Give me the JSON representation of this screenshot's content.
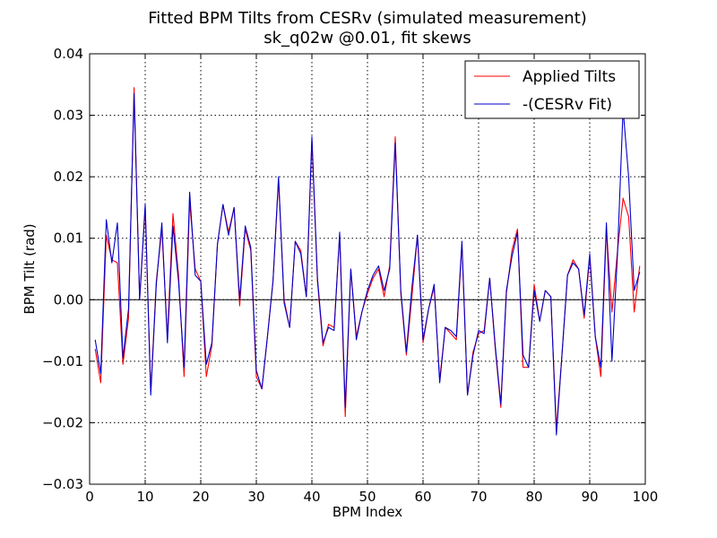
{
  "chart_data": {
    "type": "line",
    "title": "Fitted BPM Tilts from CESRv (simulated measurement)",
    "subtitle": "sk_q02w @0.01, fit skews",
    "xlabel": "BPM Index",
    "ylabel": "BPM Tilt (rad)",
    "xlim": [
      0,
      100
    ],
    "ylim": [
      -0.03,
      0.04
    ],
    "xticks": [
      0,
      10,
      20,
      30,
      40,
      50,
      60,
      70,
      80,
      90,
      100
    ],
    "yticks": [
      -0.03,
      -0.02,
      -0.01,
      0.0,
      0.01,
      0.02,
      0.03,
      0.04
    ],
    "xtick_labels": [
      "0",
      "10",
      "20",
      "30",
      "40",
      "50",
      "60",
      "70",
      "80",
      "90",
      "100"
    ],
    "ytick_labels": [
      "−0.03",
      "−0.02",
      "−0.01",
      "0.00",
      "0.01",
      "0.02",
      "0.03",
      "0.04"
    ],
    "grid": true,
    "zero_line": true,
    "legend_position": "top-right",
    "series": [
      {
        "name": "Applied Tilts",
        "color": "#ff0000",
        "x": [
          1,
          2,
          3,
          4,
          5,
          6,
          7,
          8,
          9,
          10,
          11,
          12,
          13,
          14,
          15,
          16,
          17,
          18,
          19,
          20,
          21,
          22,
          23,
          24,
          25,
          26,
          27,
          28,
          29,
          30,
          31,
          32,
          33,
          34,
          35,
          36,
          37,
          38,
          39,
          40,
          41,
          42,
          43,
          44,
          45,
          46,
          47,
          48,
          49,
          50,
          51,
          52,
          53,
          54,
          55,
          56,
          57,
          58,
          59,
          60,
          61,
          62,
          63,
          64,
          65,
          66,
          67,
          68,
          69,
          70,
          71,
          72,
          73,
          74,
          75,
          76,
          77,
          78,
          79,
          80,
          81,
          82,
          83,
          84,
          85,
          86,
          87,
          88,
          89,
          90,
          91,
          92,
          93,
          94,
          95,
          96,
          97,
          98,
          99
        ],
        "y": [
          -0.008,
          -0.0135,
          0.0105,
          0.0065,
          0.006,
          -0.0105,
          -0.003,
          0.0345,
          0.0,
          0.015,
          -0.015,
          0.003,
          0.0115,
          -0.006,
          0.014,
          0.004,
          -0.0125,
          0.016,
          0.005,
          0.003,
          -0.0125,
          -0.0075,
          0.009,
          0.0155,
          0.011,
          0.015,
          -0.001,
          0.0115,
          0.008,
          -0.0125,
          -0.0145,
          -0.006,
          0.003,
          0.0195,
          0.0,
          -0.0045,
          0.0095,
          0.008,
          0.0005,
          0.026,
          0.003,
          -0.0075,
          -0.004,
          -0.0045,
          0.0105,
          -0.019,
          0.005,
          -0.006,
          -0.002,
          0.001,
          0.0035,
          0.005,
          0.0005,
          0.0055,
          0.0265,
          0.001,
          -0.009,
          0.0005,
          0.0105,
          -0.007,
          -0.0015,
          0.002,
          -0.013,
          -0.0045,
          -0.0055,
          -0.0065,
          0.009,
          -0.0155,
          -0.0085,
          -0.0055,
          -0.005,
          0.0035,
          -0.008,
          -0.0175,
          0.001,
          0.008,
          0.0115,
          -0.011,
          -0.011,
          0.0025,
          -0.0035,
          0.0015,
          0.0005,
          -0.021,
          -0.009,
          0.004,
          0.0065,
          0.005,
          -0.003,
          0.007,
          -0.006,
          -0.0125,
          0.0115,
          -0.002,
          0.008,
          0.0165,
          0.0135,
          -0.002,
          0.0055
        ]
      },
      {
        "name": "-(CESRv Fit)",
        "color": "#0000cc",
        "x": [
          1,
          2,
          3,
          4,
          5,
          6,
          7,
          8,
          9,
          10,
          11,
          12,
          13,
          14,
          15,
          16,
          17,
          18,
          19,
          20,
          21,
          22,
          23,
          24,
          25,
          26,
          27,
          28,
          29,
          30,
          31,
          32,
          33,
          34,
          35,
          36,
          37,
          38,
          39,
          40,
          41,
          42,
          43,
          44,
          45,
          46,
          47,
          48,
          49,
          50,
          51,
          52,
          53,
          54,
          55,
          56,
          57,
          58,
          59,
          60,
          61,
          62,
          63,
          64,
          65,
          66,
          67,
          68,
          69,
          70,
          71,
          72,
          73,
          74,
          75,
          76,
          77,
          78,
          79,
          80,
          81,
          82,
          83,
          84,
          85,
          86,
          87,
          88,
          89,
          90,
          91,
          92,
          93,
          94,
          95,
          96,
          97,
          98,
          99
        ],
        "y": [
          -0.0065,
          -0.012,
          0.013,
          0.006,
          0.0125,
          -0.0095,
          -0.0015,
          0.0335,
          0.0,
          0.0155,
          -0.0155,
          0.0025,
          0.0125,
          -0.007,
          0.012,
          0.003,
          -0.011,
          0.0175,
          0.004,
          0.003,
          -0.0105,
          -0.007,
          0.009,
          0.0155,
          0.0105,
          0.015,
          0.0,
          0.012,
          0.0085,
          -0.0115,
          -0.0145,
          -0.006,
          0.003,
          0.02,
          -0.0005,
          -0.0045,
          0.0095,
          0.0075,
          0.0005,
          0.0265,
          0.0035,
          -0.007,
          -0.0045,
          -0.005,
          0.011,
          -0.0175,
          0.005,
          -0.0065,
          -0.002,
          0.0015,
          0.004,
          0.0055,
          0.0015,
          0.005,
          0.0255,
          0.0015,
          -0.0085,
          0.002,
          0.0105,
          -0.0065,
          -0.0015,
          0.0025,
          -0.0135,
          -0.0045,
          -0.005,
          -0.006,
          0.0095,
          -0.0155,
          -0.009,
          -0.005,
          -0.0055,
          0.0035,
          -0.0075,
          -0.017,
          0.0015,
          0.007,
          0.011,
          -0.009,
          -0.011,
          0.0015,
          -0.0035,
          0.0015,
          0.0005,
          -0.022,
          -0.009,
          0.004,
          0.006,
          0.005,
          -0.0025,
          0.0075,
          -0.006,
          -0.011,
          0.0125,
          -0.01,
          0.0075,
          0.031,
          0.02,
          0.0015,
          0.0045
        ]
      }
    ]
  }
}
